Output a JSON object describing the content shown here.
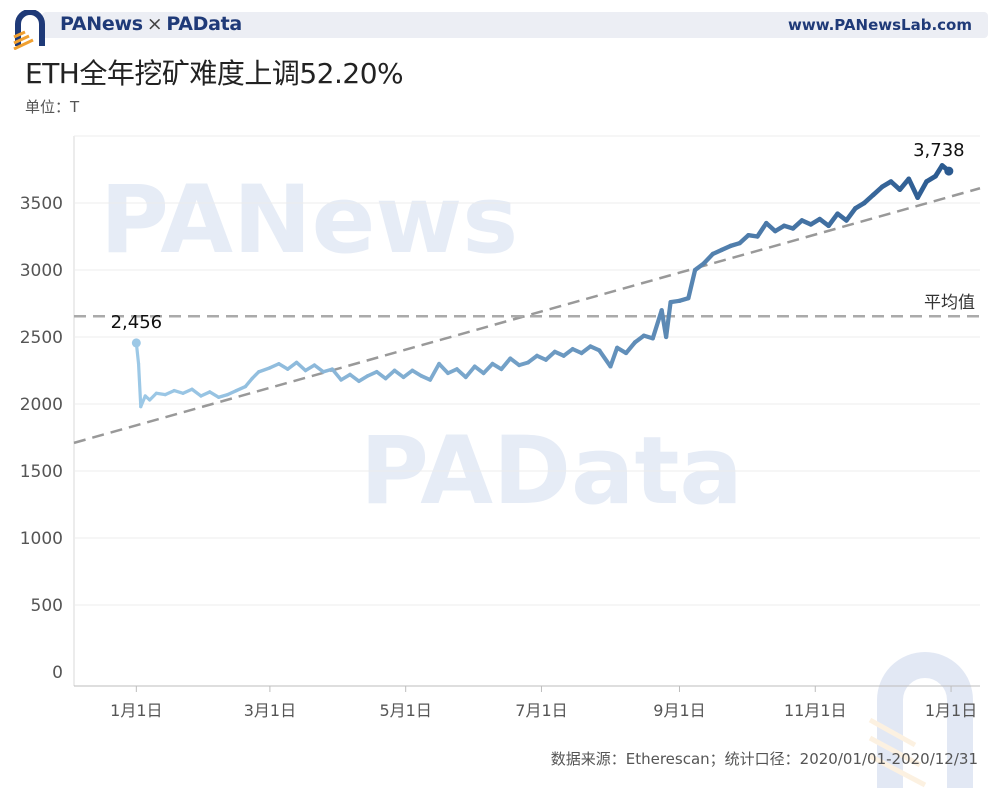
{
  "header": {
    "brand_left": "PANews",
    "separator": "×",
    "brand_right": "PAData",
    "site": "www.PANewsLab.com"
  },
  "title": "ETH全年挖矿难度上调52.20%",
  "unit_label": "单位：T",
  "source_note": "数据来源：Etherescan；统计口径：2020/01/01-2020/12/31",
  "watermarks": [
    "PANews",
    "PAData"
  ],
  "colors": {
    "line_start": "#9cc8e6",
    "line_end": "#2b5a90",
    "dashed": "#999999",
    "grid": "#ececec",
    "brand": "#1f3a78",
    "accent": "#f0a030"
  },
  "chart_data": {
    "type": "line",
    "title": "ETH全年挖矿难度上调52.20%",
    "ylabel": "单位：T",
    "ylim": [
      0,
      3800
    ],
    "yticks": [
      0,
      500,
      1000,
      1500,
      2000,
      2500,
      3000,
      3500
    ],
    "xlim": [
      "2019-12-04",
      "2021-01-14"
    ],
    "xticks": [
      {
        "date": "2020-01-01",
        "label": "1月1日"
      },
      {
        "date": "2020-03-01",
        "label": "3月1日"
      },
      {
        "date": "2020-05-01",
        "label": "5月1日"
      },
      {
        "date": "2020-07-01",
        "label": "7月1日"
      },
      {
        "date": "2020-09-01",
        "label": "9月1日"
      },
      {
        "date": "2020-11-01",
        "label": "11月1日"
      },
      {
        "date": "2021-01-01",
        "label": "1月1日"
      }
    ],
    "series": [
      {
        "points": [
          [
            "2020-01-01",
            2456
          ],
          [
            "2020-01-02",
            2300
          ],
          [
            "2020-01-03",
            1980
          ],
          [
            "2020-01-05",
            2060
          ],
          [
            "2020-01-07",
            2030
          ],
          [
            "2020-01-10",
            2080
          ],
          [
            "2020-01-14",
            2070
          ],
          [
            "2020-01-18",
            2100
          ],
          [
            "2020-01-22",
            2080
          ],
          [
            "2020-01-26",
            2110
          ],
          [
            "2020-01-30",
            2060
          ],
          [
            "2020-02-03",
            2090
          ],
          [
            "2020-02-07",
            2050
          ],
          [
            "2020-02-11",
            2070
          ],
          [
            "2020-02-15",
            2100
          ],
          [
            "2020-02-19",
            2130
          ],
          [
            "2020-02-22",
            2190
          ],
          [
            "2020-02-25",
            2240
          ],
          [
            "2020-03-01",
            2270
          ],
          [
            "2020-03-05",
            2300
          ],
          [
            "2020-03-09",
            2260
          ],
          [
            "2020-03-13",
            2310
          ],
          [
            "2020-03-17",
            2250
          ],
          [
            "2020-03-21",
            2290
          ],
          [
            "2020-03-25",
            2240
          ],
          [
            "2020-03-29",
            2260
          ],
          [
            "2020-04-02",
            2180
          ],
          [
            "2020-04-06",
            2220
          ],
          [
            "2020-04-10",
            2170
          ],
          [
            "2020-04-14",
            2210
          ],
          [
            "2020-04-18",
            2240
          ],
          [
            "2020-04-22",
            2190
          ],
          [
            "2020-04-26",
            2250
          ],
          [
            "2020-04-30",
            2200
          ],
          [
            "2020-05-04",
            2250
          ],
          [
            "2020-05-08",
            2210
          ],
          [
            "2020-05-12",
            2180
          ],
          [
            "2020-05-16",
            2300
          ],
          [
            "2020-05-20",
            2230
          ],
          [
            "2020-05-24",
            2260
          ],
          [
            "2020-05-28",
            2200
          ],
          [
            "2020-06-01",
            2280
          ],
          [
            "2020-06-05",
            2230
          ],
          [
            "2020-06-09",
            2300
          ],
          [
            "2020-06-13",
            2260
          ],
          [
            "2020-06-17",
            2340
          ],
          [
            "2020-06-21",
            2290
          ],
          [
            "2020-06-25",
            2310
          ],
          [
            "2020-06-29",
            2360
          ],
          [
            "2020-07-03",
            2330
          ],
          [
            "2020-07-07",
            2390
          ],
          [
            "2020-07-11",
            2360
          ],
          [
            "2020-07-15",
            2410
          ],
          [
            "2020-07-19",
            2380
          ],
          [
            "2020-07-23",
            2430
          ],
          [
            "2020-07-27",
            2400
          ],
          [
            "2020-08-01",
            2280
          ],
          [
            "2020-08-04",
            2420
          ],
          [
            "2020-08-08",
            2380
          ],
          [
            "2020-08-12",
            2460
          ],
          [
            "2020-08-16",
            2510
          ],
          [
            "2020-08-20",
            2490
          ],
          [
            "2020-08-24",
            2700
          ],
          [
            "2020-08-26",
            2500
          ],
          [
            "2020-08-28",
            2760
          ],
          [
            "2020-09-01",
            2770
          ],
          [
            "2020-09-05",
            2790
          ],
          [
            "2020-09-08",
            3000
          ],
          [
            "2020-09-12",
            3050
          ],
          [
            "2020-09-16",
            3120
          ],
          [
            "2020-09-20",
            3150
          ],
          [
            "2020-09-24",
            3180
          ],
          [
            "2020-09-28",
            3200
          ],
          [
            "2020-10-02",
            3260
          ],
          [
            "2020-10-06",
            3250
          ],
          [
            "2020-10-10",
            3350
          ],
          [
            "2020-10-14",
            3290
          ],
          [
            "2020-10-18",
            3330
          ],
          [
            "2020-10-22",
            3310
          ],
          [
            "2020-10-26",
            3370
          ],
          [
            "2020-10-30",
            3340
          ],
          [
            "2020-11-03",
            3380
          ],
          [
            "2020-11-07",
            3330
          ],
          [
            "2020-11-11",
            3420
          ],
          [
            "2020-11-15",
            3370
          ],
          [
            "2020-11-19",
            3460
          ],
          [
            "2020-11-23",
            3500
          ],
          [
            "2020-11-27",
            3560
          ],
          [
            "2020-12-01",
            3620
          ],
          [
            "2020-12-05",
            3660
          ],
          [
            "2020-12-09",
            3600
          ],
          [
            "2020-12-13",
            3680
          ],
          [
            "2020-12-17",
            3540
          ],
          [
            "2020-12-21",
            3660
          ],
          [
            "2020-12-25",
            3700
          ],
          [
            "2020-12-28",
            3780
          ],
          [
            "2020-12-31",
            3738
          ]
        ]
      }
    ],
    "data_labels": [
      {
        "date": "2020-01-01",
        "value": 2456,
        "text": "2,456"
      },
      {
        "date": "2020-12-31",
        "value": 3738,
        "text": "3,738"
      }
    ],
    "trend_line": {
      "start": [
        "2019-12-04",
        1710
      ],
      "end": [
        "2021-01-14",
        3610
      ]
    },
    "average_line": {
      "value": 2655,
      "label": "平均值"
    },
    "grid": "horizontal",
    "legend": "none"
  }
}
